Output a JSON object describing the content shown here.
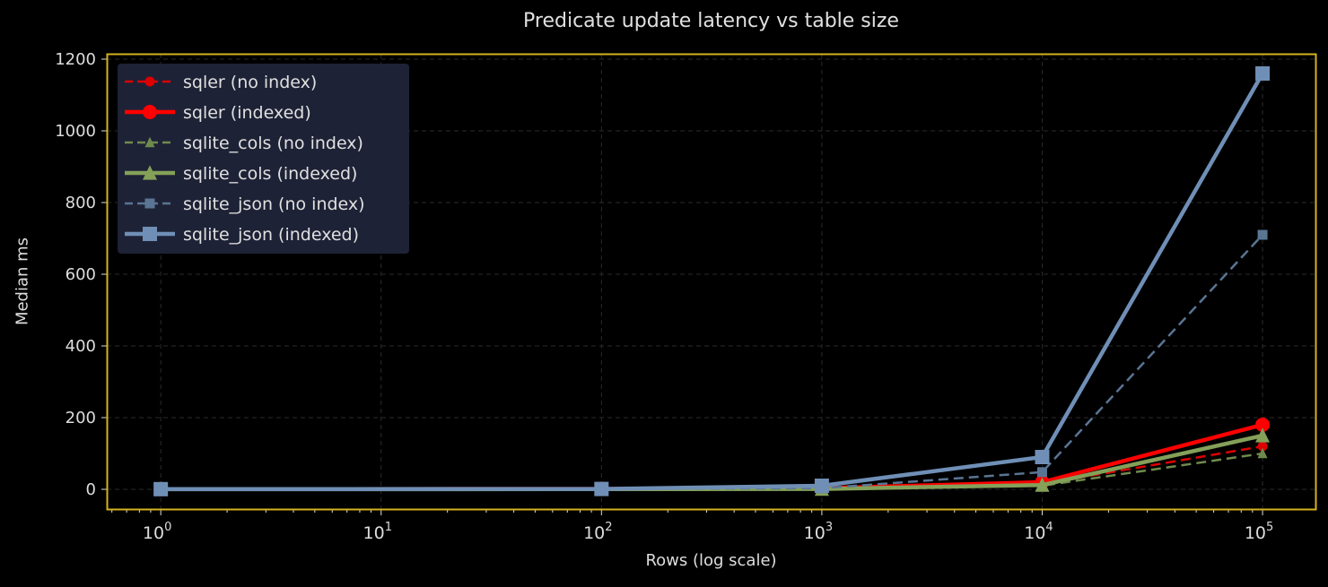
{
  "chart_data": {
    "type": "line",
    "title": "Predicate update latency vs table size",
    "xlabel": "Rows (log scale)",
    "ylabel": "Median ms",
    "xscale": "log",
    "x": [
      1,
      100,
      1000,
      10000,
      100000
    ],
    "xticks": [
      {
        "base": "10",
        "exp": "0",
        "value": 1
      },
      {
        "base": "10",
        "exp": "1",
        "value": 10
      },
      {
        "base": "10",
        "exp": "2",
        "value": 100
      },
      {
        "base": "10",
        "exp": "3",
        "value": 1000
      },
      {
        "base": "10",
        "exp": "4",
        "value": 10000
      },
      {
        "base": "10",
        "exp": "5",
        "value": 100000
      }
    ],
    "yticks": [
      0,
      200,
      400,
      600,
      800,
      1000,
      1200
    ],
    "ylim": [
      -55,
      1215
    ],
    "xlim_log10": [
      -0.245,
      5.24
    ],
    "grid": true,
    "legend_position": "upper left",
    "series": [
      {
        "name": "sqler (no index)",
        "color": "#dd0000",
        "linestyle": "dashed",
        "marker": "circle",
        "width": 2.5,
        "values": [
          0.5,
          1,
          2,
          15,
          120
        ]
      },
      {
        "name": "sqler (indexed)",
        "color": "#ff0000",
        "linestyle": "solid",
        "marker": "circle",
        "width": 4.5,
        "values": [
          0.5,
          1,
          3,
          20,
          180
        ]
      },
      {
        "name": "sqlite_cols (no index)",
        "color": "#6f8a4e",
        "linestyle": "dashed",
        "marker": "triangle",
        "width": 2.5,
        "values": [
          0.3,
          0.5,
          1,
          10,
          100
        ]
      },
      {
        "name": "sqlite_cols (indexed)",
        "color": "#84a059",
        "linestyle": "solid",
        "marker": "triangle",
        "width": 4.5,
        "values": [
          0.3,
          0.5,
          1,
          12,
          150
        ]
      },
      {
        "name": "sqlite_json (no index)",
        "color": "#5a7594",
        "linestyle": "dashed",
        "marker": "square",
        "width": 2.5,
        "values": [
          0.5,
          1,
          3,
          48,
          710
        ]
      },
      {
        "name": "sqlite_json (indexed)",
        "color": "#6f8fb6",
        "linestyle": "solid",
        "marker": "square",
        "width": 4.5,
        "values": [
          0.5,
          1,
          10,
          90,
          1160
        ]
      }
    ],
    "colors": {
      "background": "#000000",
      "spine": "#d4b21e",
      "grid": "#2a2a2a",
      "text": "#dddddd",
      "legend_bg": "#1e2236"
    }
  }
}
